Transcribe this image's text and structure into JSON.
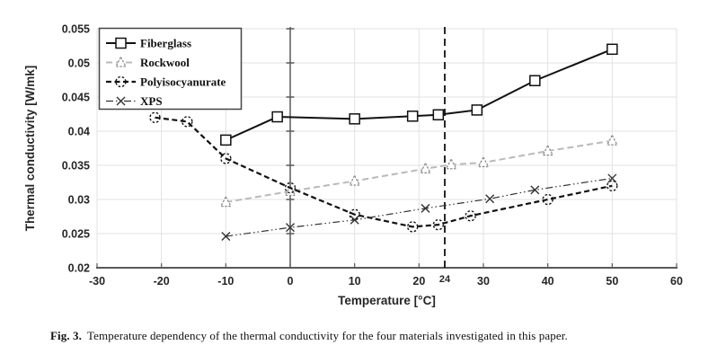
{
  "figure": {
    "caption_label": "Fig. 3.",
    "caption_text": "Temperature dependency of the thermal conductivity for the four materials investigated in this paper."
  },
  "colors": {
    "background": "#ffffff",
    "grid": "#e2e2e2",
    "axis": "#595959",
    "text": "#262626",
    "reference_line": "#111111",
    "fiberglass": "#111111",
    "rockwool": "#b9b9b9",
    "rockwool_marker": "#8c8c8c",
    "polyisocyanurate": "#111111",
    "xps": "#333333"
  },
  "chart_data": {
    "type": "line",
    "title": "",
    "xlabel": "Temperature [°C]",
    "ylabel": "Thermal conductivity [W/mk]",
    "xlim": [
      -30,
      60
    ],
    "ylim": [
      0.02,
      0.055
    ],
    "x_ticks": [
      -30,
      -20,
      -10,
      0,
      10,
      20,
      30,
      40,
      50,
      60
    ],
    "extra_x_tick": 24,
    "y_ticks": [
      0.02,
      0.025,
      0.03,
      0.035,
      0.04,
      0.045,
      0.05,
      0.055
    ],
    "grid": true,
    "legend_position": "top-left",
    "reference_line_x": 24,
    "series": [
      {
        "name": "Fiberglass",
        "marker": "square",
        "line": "solid",
        "color": "#111111",
        "marker_color": "#111111",
        "points": [
          [
            -10,
            0.0387
          ],
          [
            -2,
            0.0421
          ],
          [
            10,
            0.0418
          ],
          [
            19,
            0.0422
          ],
          [
            23,
            0.0424
          ],
          [
            29,
            0.0431
          ],
          [
            38,
            0.0474
          ],
          [
            50,
            0.052
          ]
        ]
      },
      {
        "name": "Rockwool",
        "marker": "triangle",
        "line": "dashed",
        "color": "#b9b9b9",
        "marker_color": "#8c8c8c",
        "points": [
          [
            -10,
            0.0296
          ],
          [
            0,
            0.0312
          ],
          [
            10,
            0.0327
          ],
          [
            21,
            0.0345
          ],
          [
            25,
            0.0351
          ],
          [
            30,
            0.0354
          ],
          [
            40,
            0.0371
          ],
          [
            50,
            0.0386
          ]
        ]
      },
      {
        "name": "Polyisocyanurate",
        "marker": "circle",
        "line": "dashed-bold",
        "color": "#111111",
        "marker_color": "#111111",
        "points": [
          [
            -21,
            0.042
          ],
          [
            -16,
            0.0414
          ],
          [
            -10,
            0.036
          ],
          [
            0,
            0.0317
          ],
          [
            10,
            0.0278
          ],
          [
            19,
            0.026
          ],
          [
            23,
            0.0263
          ],
          [
            28,
            0.0276
          ],
          [
            40,
            0.03
          ],
          [
            50,
            0.032
          ]
        ]
      },
      {
        "name": "XPS",
        "marker": "x",
        "line": "dash-dot-dot",
        "color": "#333333",
        "marker_color": "#333333",
        "points": [
          [
            -10,
            0.0246
          ],
          [
            0,
            0.0259
          ],
          [
            10,
            0.027
          ],
          [
            21,
            0.0287
          ],
          [
            31,
            0.0301
          ],
          [
            38,
            0.0314
          ],
          [
            50,
            0.0331
          ]
        ]
      }
    ]
  }
}
